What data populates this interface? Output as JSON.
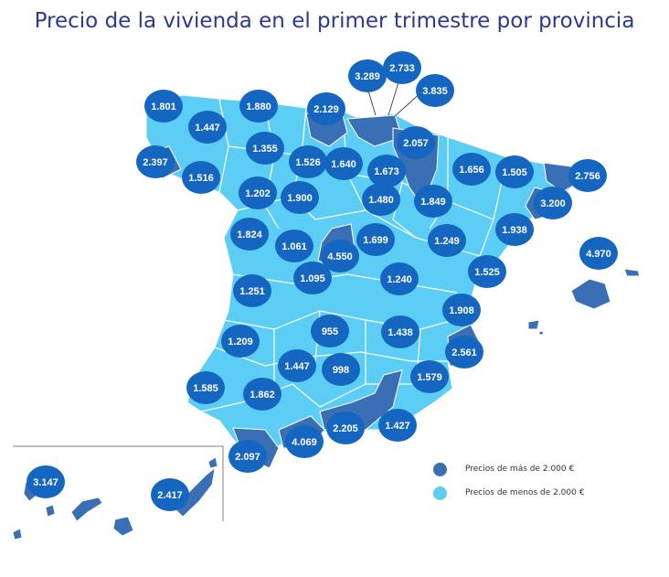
{
  "title": "Precio de la vivienda en el primer trimestre por provincia",
  "colors": {
    "high": "#3b6fb5",
    "low": "#5ccdf5",
    "bubble": "#1466c0",
    "border": "#ffffff",
    "title": "#2b3a8c"
  },
  "legend": {
    "high_label": "Precios de más de 2.000 €",
    "low_label": "Precios de menos de 2.000 €"
  },
  "provinces": [
    {
      "price": "1.801",
      "tier": "low"
    },
    {
      "price": "1.447",
      "tier": "low"
    },
    {
      "price": "1.880",
      "tier": "low"
    },
    {
      "price": "2.129",
      "tier": "high"
    },
    {
      "price": "3.289",
      "tier": "high"
    },
    {
      "price": "2.733",
      "tier": "high"
    },
    {
      "price": "3.835",
      "tier": "high"
    },
    {
      "price": "2.397",
      "tier": "high"
    },
    {
      "price": "1.355",
      "tier": "low"
    },
    {
      "price": "2.057",
      "tier": "high"
    },
    {
      "price": "1.516",
      "tier": "low"
    },
    {
      "price": "1.526",
      "tier": "low"
    },
    {
      "price": "1.640",
      "tier": "low"
    },
    {
      "price": "1.673",
      "tier": "low"
    },
    {
      "price": "1.656",
      "tier": "low"
    },
    {
      "price": "1.505",
      "tier": "low"
    },
    {
      "price": "2.756",
      "tier": "high"
    },
    {
      "price": "1.202",
      "tier": "low"
    },
    {
      "price": "1.900",
      "tier": "low"
    },
    {
      "price": "1.480",
      "tier": "low"
    },
    {
      "price": "1.849",
      "tier": "low"
    },
    {
      "price": "3.200",
      "tier": "high"
    },
    {
      "price": "1.938",
      "tier": "low"
    },
    {
      "price": "1.824",
      "tier": "low"
    },
    {
      "price": "1.061",
      "tier": "low"
    },
    {
      "price": "4.550",
      "tier": "high"
    },
    {
      "price": "1.699",
      "tier": "low"
    },
    {
      "price": "1.249",
      "tier": "low"
    },
    {
      "price": "4.970",
      "tier": "high"
    },
    {
      "price": "1.095",
      "tier": "low"
    },
    {
      "price": "1.525",
      "tier": "low"
    },
    {
      "price": "1.251",
      "tier": "low"
    },
    {
      "price": "1.240",
      "tier": "low"
    },
    {
      "price": "1.908",
      "tier": "low"
    },
    {
      "price": "955",
      "tier": "low"
    },
    {
      "price": "1.438",
      "tier": "low"
    },
    {
      "price": "1.209",
      "tier": "low"
    },
    {
      "price": "2.561",
      "tier": "high"
    },
    {
      "price": "1.447",
      "tier": "low"
    },
    {
      "price": "998",
      "tier": "low"
    },
    {
      "price": "1.579",
      "tier": "low"
    },
    {
      "price": "1.585",
      "tier": "low"
    },
    {
      "price": "1.862",
      "tier": "low"
    },
    {
      "price": "2.205",
      "tier": "high"
    },
    {
      "price": "1.427",
      "tier": "low"
    },
    {
      "price": "4.069",
      "tier": "high"
    },
    {
      "price": "2.097",
      "tier": "high"
    },
    {
      "price": "3.147",
      "tier": "high"
    },
    {
      "price": "2.417",
      "tier": "high"
    }
  ]
}
